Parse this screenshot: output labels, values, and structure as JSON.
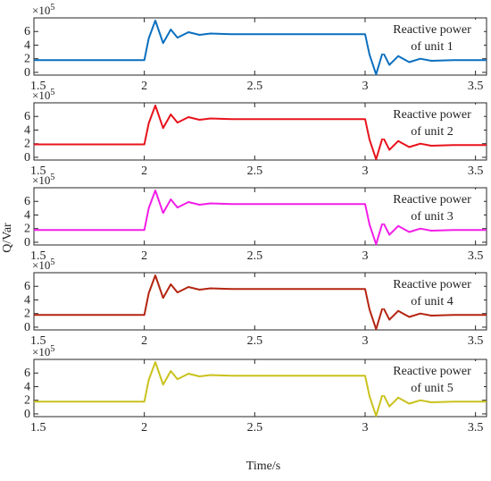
{
  "chart_data": {
    "type": "line",
    "xlabel": "Time/s",
    "ylabel": "Q/Var",
    "x_ticks": [
      "1.5",
      "2",
      "2.5",
      "3",
      "3.5"
    ],
    "y_ticks": [
      "0",
      "2",
      "4",
      "6"
    ],
    "y_multiplier": "×10",
    "y_exponent": "5",
    "xlim": [
      1.5,
      3.55
    ],
    "ylim": [
      -0.4,
      8.0
    ],
    "grid": false,
    "panels": [
      {
        "label_line1": "Reactive power",
        "label_line2": "of unit 1",
        "color": "#0a6fbf",
        "x": [
          1.5,
          2.0,
          2.02,
          2.05,
          2.085,
          2.12,
          2.15,
          2.2,
          2.25,
          2.3,
          2.4,
          3.0,
          3.02,
          3.05,
          3.08,
          3.11,
          3.15,
          3.2,
          3.25,
          3.3,
          3.4,
          3.55
        ],
        "values": [
          1.8,
          1.8,
          5.0,
          7.6,
          4.3,
          6.3,
          5.1,
          5.9,
          5.5,
          5.7,
          5.6,
          5.6,
          2.6,
          -0.3,
          3.0,
          1.1,
          2.4,
          1.5,
          2.0,
          1.7,
          1.8,
          1.8
        ]
      },
      {
        "label_line1": "Reactive power",
        "label_line2": "of unit 2",
        "color": "#e8121b",
        "x": [
          1.5,
          2.0,
          2.02,
          2.05,
          2.085,
          2.12,
          2.15,
          2.2,
          2.25,
          2.3,
          2.4,
          3.0,
          3.02,
          3.05,
          3.08,
          3.11,
          3.15,
          3.2,
          3.25,
          3.3,
          3.4,
          3.55
        ],
        "values": [
          1.9,
          1.9,
          5.0,
          7.6,
          4.3,
          6.3,
          5.1,
          5.9,
          5.5,
          5.7,
          5.6,
          5.6,
          2.6,
          -0.3,
          3.0,
          1.1,
          2.4,
          1.5,
          2.0,
          1.7,
          1.8,
          1.8
        ]
      },
      {
        "label_line1": "Reactive power",
        "label_line2": "of unit 3",
        "color": "#f21de8",
        "x": [
          1.5,
          2.0,
          2.02,
          2.05,
          2.085,
          2.12,
          2.15,
          2.2,
          2.25,
          2.3,
          2.4,
          3.0,
          3.02,
          3.05,
          3.08,
          3.11,
          3.15,
          3.2,
          3.25,
          3.3,
          3.4,
          3.55
        ],
        "values": [
          1.8,
          1.8,
          5.0,
          7.6,
          4.3,
          6.3,
          5.1,
          5.9,
          5.5,
          5.7,
          5.6,
          5.6,
          2.6,
          -0.3,
          3.0,
          1.1,
          2.4,
          1.5,
          2.0,
          1.7,
          1.8,
          1.8
        ]
      },
      {
        "label_line1": "Reactive power",
        "label_line2": "of unit 4",
        "color": "#b42410",
        "x": [
          1.5,
          2.0,
          2.02,
          2.05,
          2.085,
          2.12,
          2.15,
          2.2,
          2.25,
          2.3,
          2.4,
          3.0,
          3.02,
          3.05,
          3.08,
          3.11,
          3.15,
          3.2,
          3.25,
          3.3,
          3.4,
          3.55
        ],
        "values": [
          1.8,
          1.8,
          5.0,
          7.6,
          4.3,
          6.3,
          5.1,
          5.9,
          5.5,
          5.7,
          5.6,
          5.6,
          2.6,
          -0.3,
          3.0,
          1.1,
          2.4,
          1.5,
          2.0,
          1.7,
          1.8,
          1.8
        ]
      },
      {
        "label_line1": "Reactive power",
        "label_line2": "of unit 5",
        "color": "#c9c21c",
        "x": [
          1.5,
          2.0,
          2.02,
          2.05,
          2.085,
          2.12,
          2.15,
          2.2,
          2.25,
          2.3,
          2.4,
          3.0,
          3.02,
          3.05,
          3.08,
          3.11,
          3.15,
          3.2,
          3.25,
          3.3,
          3.4,
          3.55
        ],
        "values": [
          1.8,
          1.8,
          5.0,
          7.6,
          4.3,
          6.3,
          5.1,
          5.9,
          5.5,
          5.7,
          5.6,
          5.6,
          2.6,
          -0.3,
          3.0,
          1.1,
          2.4,
          1.5,
          2.0,
          1.7,
          1.8,
          1.8
        ]
      }
    ]
  }
}
